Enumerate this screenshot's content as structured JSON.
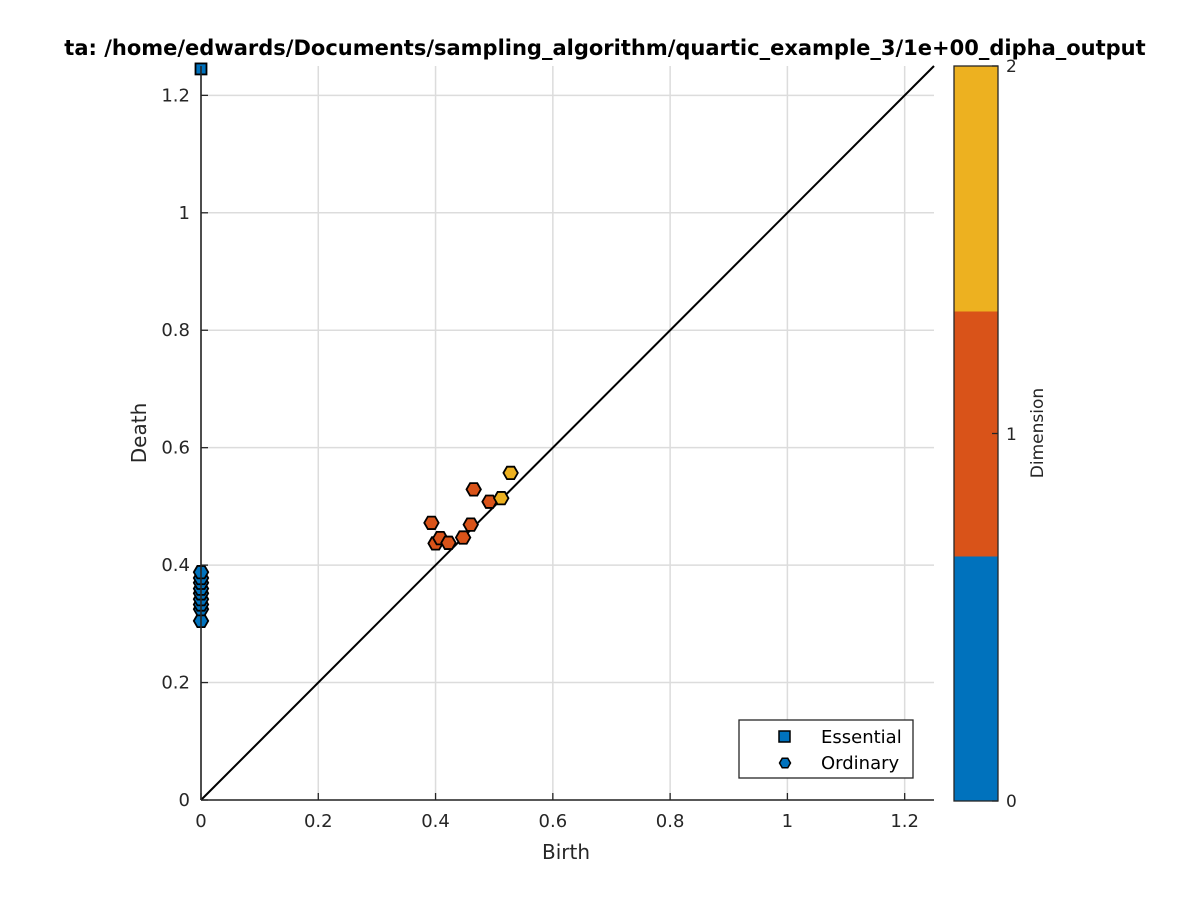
{
  "chart_data": {
    "type": "scatter",
    "title": "ta: /home/edwards/Documents/sampling_algorithm/quartic_example_3/1e+00_dipha_output",
    "xlabel": "Birth",
    "ylabel": "Death",
    "xlim": [
      0,
      1.25
    ],
    "ylim": [
      0,
      1.25
    ],
    "xticks": [
      0,
      0.2,
      0.4,
      0.6,
      0.8,
      1,
      1.2
    ],
    "yticks": [
      0,
      0.2,
      0.4,
      0.6,
      0.8,
      1,
      1.2
    ],
    "tick_labels": [
      "0",
      "0.2",
      "0.4",
      "0.6",
      "0.8",
      "1",
      "1.2"
    ],
    "grid": true,
    "diagonal_line": true,
    "legend": {
      "placement": "bottom-right",
      "entries": [
        "Essential",
        "Ordinary"
      ]
    },
    "colorbar": {
      "label": "Dimension",
      "range": [
        0,
        2
      ],
      "ticks": [
        "0",
        "1",
        "2"
      ],
      "colors": [
        "#0072BD",
        "#D95319",
        "#EDB120"
      ]
    },
    "series": [
      {
        "name": "Essential",
        "marker": "square",
        "points": [
          {
            "x": 0.0,
            "y": 1.245,
            "dim": 0
          }
        ]
      },
      {
        "name": "Ordinary",
        "marker": "hexagon",
        "points": [
          {
            "x": 0.0,
            "y": 0.305,
            "dim": 0
          },
          {
            "x": 0.0,
            "y": 0.325,
            "dim": 0
          },
          {
            "x": 0.0,
            "y": 0.333,
            "dim": 0
          },
          {
            "x": 0.0,
            "y": 0.342,
            "dim": 0
          },
          {
            "x": 0.0,
            "y": 0.352,
            "dim": 0
          },
          {
            "x": 0.0,
            "y": 0.36,
            "dim": 0
          },
          {
            "x": 0.0,
            "y": 0.37,
            "dim": 0
          },
          {
            "x": 0.0,
            "y": 0.378,
            "dim": 0
          },
          {
            "x": 0.0,
            "y": 0.388,
            "dim": 0
          },
          {
            "x": 0.393,
            "y": 0.472,
            "dim": 1
          },
          {
            "x": 0.4,
            "y": 0.437,
            "dim": 1
          },
          {
            "x": 0.408,
            "y": 0.446,
            "dim": 1
          },
          {
            "x": 0.422,
            "y": 0.438,
            "dim": 1
          },
          {
            "x": 0.447,
            "y": 0.447,
            "dim": 1
          },
          {
            "x": 0.46,
            "y": 0.469,
            "dim": 1
          },
          {
            "x": 0.465,
            "y": 0.529,
            "dim": 1
          },
          {
            "x": 0.492,
            "y": 0.508,
            "dim": 1
          },
          {
            "x": 0.512,
            "y": 0.514,
            "dim": 2
          },
          {
            "x": 0.528,
            "y": 0.557,
            "dim": 2
          }
        ]
      }
    ]
  }
}
